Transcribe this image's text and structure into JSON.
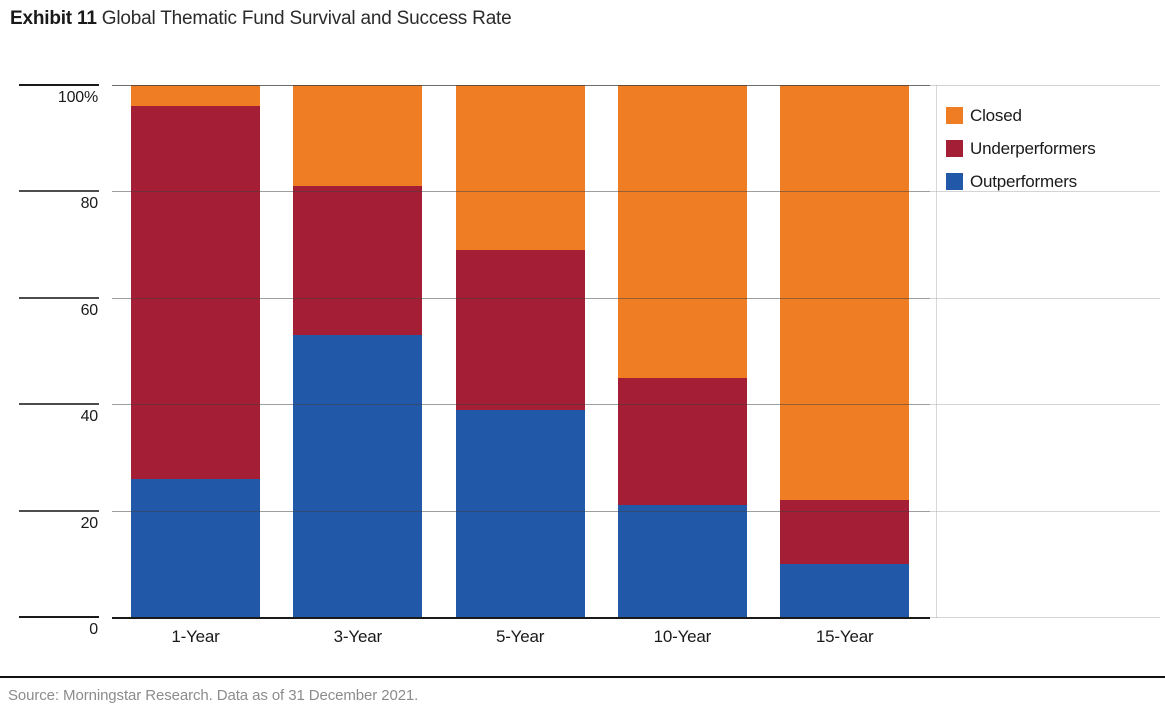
{
  "title": {
    "exhibit": "Exhibit 11",
    "text": "Global Thematic Fund Survival and Success Rate"
  },
  "source_line": "Source: Morningstar Research. Data as of 31 December 2021.",
  "chart_data": {
    "type": "bar",
    "stacked": true,
    "title": "Global Thematic Fund Survival and Success Rate",
    "categories": [
      "1-Year",
      "3-Year",
      "5-Year",
      "10-Year",
      "15-Year"
    ],
    "series": [
      {
        "name": "Outperformers",
        "color": "#2159A8",
        "values": [
          26,
          53,
          39,
          21,
          10
        ]
      },
      {
        "name": "Underperformers",
        "color": "#A41E35",
        "values": [
          70,
          28,
          30,
          24,
          12
        ]
      },
      {
        "name": "Closed",
        "color": "#EF7D23",
        "values": [
          4,
          19,
          31,
          55,
          78
        ]
      }
    ],
    "xlabel": "",
    "ylabel": "",
    "ylim": [
      0,
      100
    ],
    "y_tick_values": [
      100,
      80,
      60,
      40,
      20,
      0
    ],
    "y_ticks": [
      "100%",
      "80",
      "60",
      "40",
      "20",
      "0"
    ],
    "grid": true,
    "legend_position": "top-right",
    "legend_order": [
      "Closed",
      "Underperformers",
      "Outperformers"
    ]
  },
  "colors": {
    "closed": "#EF7D23",
    "underperformers": "#A41E35",
    "outperformers": "#2159A8",
    "axis": "#1a1a1a",
    "grid": "#6e6e6e",
    "source_text": "#8c8c8c"
  }
}
